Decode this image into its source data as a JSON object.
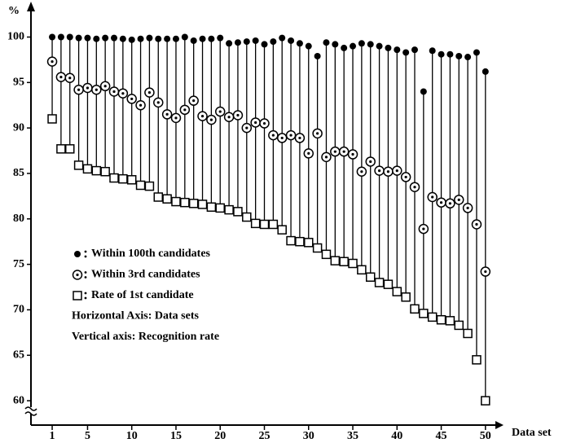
{
  "chart_data": {
    "type": "scatter",
    "xlabel": "Data set",
    "ylabel": "%",
    "x": [
      1,
      2,
      3,
      4,
      5,
      6,
      7,
      8,
      9,
      10,
      11,
      12,
      13,
      14,
      15,
      16,
      17,
      18,
      19,
      20,
      21,
      22,
      23,
      24,
      25,
      26,
      27,
      28,
      29,
      30,
      31,
      32,
      33,
      34,
      35,
      36,
      37,
      38,
      39,
      40,
      41,
      42,
      43,
      44,
      45,
      46,
      47,
      48,
      49,
      50
    ],
    "series": [
      {
        "name": "Within 100th candidates",
        "marker": "filled-circle",
        "color": "#000000",
        "values": [
          100,
          100,
          100,
          99.9,
          99.9,
          99.8,
          99.9,
          99.9,
          99.8,
          99.7,
          99.8,
          99.9,
          99.8,
          99.8,
          99.8,
          100,
          99.6,
          99.8,
          99.8,
          99.9,
          99.3,
          99.4,
          99.5,
          99.6,
          99.2,
          99.5,
          99.9,
          99.6,
          99.3,
          99.0,
          97.9,
          99.4,
          99.2,
          98.8,
          99.0,
          99.3,
          99.2,
          99.0,
          98.8,
          98.6,
          98.3,
          98.6,
          94.0,
          98.5,
          98.1,
          98.1,
          97.9,
          97.8,
          98.3,
          96.2
        ]
      },
      {
        "name": "Within 3rd candidates",
        "marker": "dotted-circle",
        "color": "#000000",
        "values": [
          97.3,
          95.6,
          95.5,
          94.2,
          94.4,
          94.2,
          94.6,
          94.0,
          93.8,
          93.2,
          92.5,
          93.9,
          92.8,
          91.5,
          91.1,
          92.0,
          93.0,
          91.3,
          90.9,
          91.8,
          91.2,
          91.4,
          90.0,
          90.6,
          90.5,
          89.2,
          88.9,
          89.2,
          88.9,
          87.2,
          89.4,
          86.8,
          87.4,
          87.4,
          87.1,
          85.2,
          86.3,
          85.3,
          85.2,
          85.3,
          84.6,
          83.5,
          78.9,
          82.4,
          81.8,
          81.7,
          82.1,
          81.2,
          79.4,
          74.2
        ]
      },
      {
        "name": "Rate of 1st candidate",
        "marker": "square",
        "color": "#000000",
        "values": [
          91,
          87.7,
          87.7,
          85.9,
          85.5,
          85.3,
          85.2,
          84.5,
          84.4,
          84.3,
          83.7,
          83.6,
          82.4,
          82.2,
          81.9,
          81.8,
          81.7,
          81.6,
          81.3,
          81.2,
          81.0,
          80.8,
          80.2,
          79.5,
          79.4,
          79.4,
          78.8,
          77.6,
          77.5,
          77.4,
          76.8,
          76.1,
          75.4,
          75.3,
          75.1,
          74.4,
          73.6,
          73.0,
          72.8,
          72.0,
          71.4,
          70.1,
          69.6,
          69.2,
          68.9,
          68.8,
          68.3,
          67.4,
          64.5,
          60.0
        ]
      }
    ],
    "notes": [
      "Horizontal Axis: Data sets",
      "Vertical axis: Recognition rate"
    ],
    "xlim": [
      -1.4,
      51.4
    ],
    "ylim": [
      57.5,
      103
    ],
    "xticks": [
      1,
      5,
      10,
      15,
      20,
      25,
      30,
      35,
      40,
      45,
      50
    ],
    "yticks": [
      60,
      65,
      70,
      75,
      80,
      85,
      90,
      95,
      100
    ],
    "legend": "lower left"
  }
}
